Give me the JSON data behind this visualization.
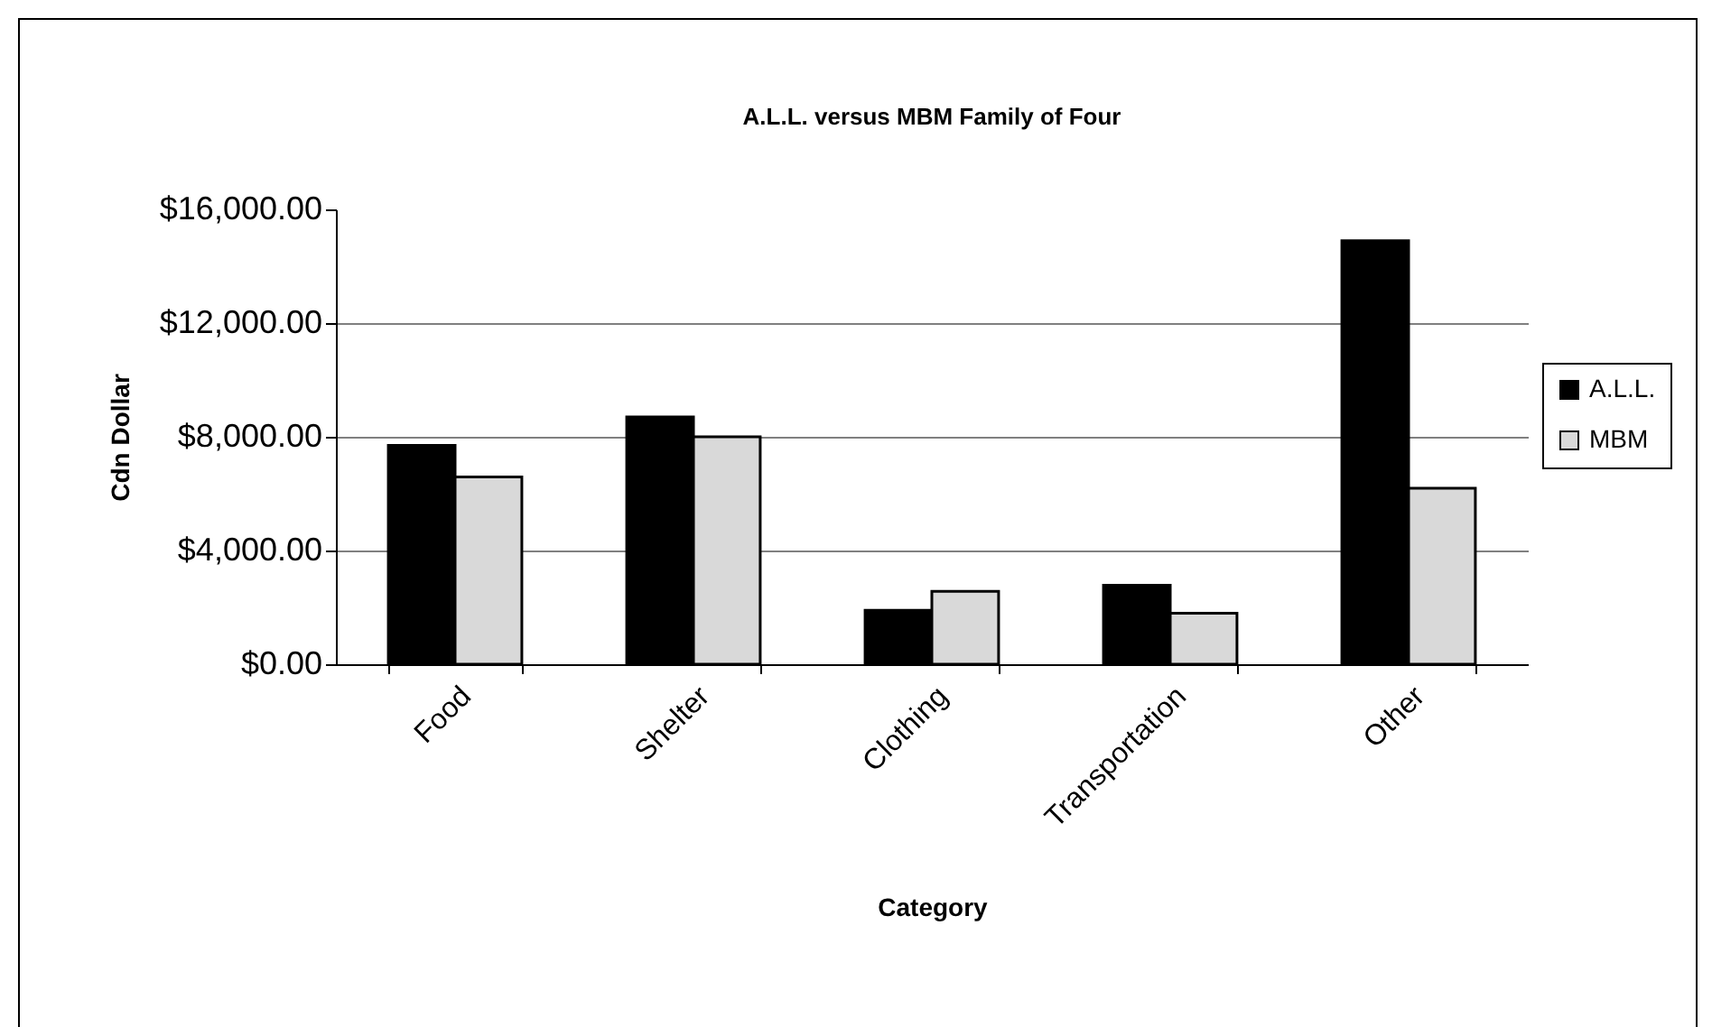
{
  "chart_data": {
    "type": "bar",
    "title": "A.L.L. versus MBM Family of Four",
    "xlabel": "Category",
    "ylabel": "Cdn Dollar",
    "categories": [
      "Food",
      "Shelter",
      "Clothing",
      "Transportation",
      "Other"
    ],
    "series": [
      {
        "name": "A.L.L.",
        "color": "#000000",
        "values": [
          7700,
          8700,
          1900,
          2780,
          14900
        ]
      },
      {
        "name": "MBM",
        "color": "#d9d9d9",
        "values": [
          6590,
          8000,
          2560,
          1790,
          6190
        ]
      }
    ],
    "ylim": [
      0,
      16000
    ],
    "yticks": [
      {
        "value": 0,
        "label": "$0.00"
      },
      {
        "value": 4000,
        "label": "$4,000.00"
      },
      {
        "value": 8000,
        "label": "$8,000.00"
      },
      {
        "value": 12000,
        "label": "$12,000.00"
      },
      {
        "value": 16000,
        "label": "$16,000.00"
      }
    ],
    "grid": "y",
    "legend": "right"
  }
}
